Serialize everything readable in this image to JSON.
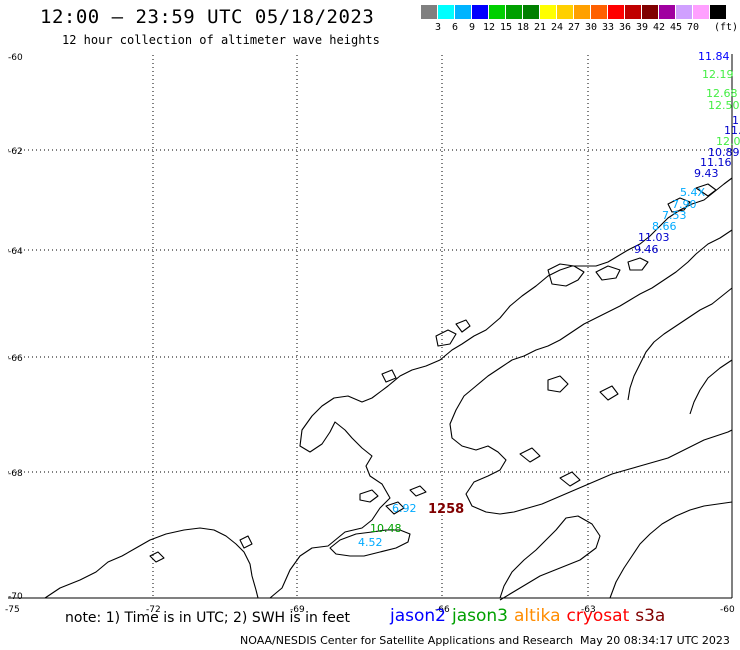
{
  "header": {
    "title": "12:00 – 23:59 UTC 05/18/2023",
    "subtitle": "12 hour collection of altimeter wave heights"
  },
  "legend": {
    "colors": [
      "#808080",
      "#00ffff",
      "#00b4ff",
      "#0000ff",
      "#00d000",
      "#00a000",
      "#008000",
      "#ffff00",
      "#ffd000",
      "#ffa000",
      "#ff6000",
      "#ff0000",
      "#c00000",
      "#800000",
      "#a000a0",
      "#d0a0ff",
      "#ffa0ff",
      "#000000"
    ],
    "labels": [
      "3",
      "6",
      "9",
      "12",
      "15",
      "18",
      "21",
      "24",
      "27",
      "30",
      "33",
      "36",
      "39",
      "42",
      "45",
      "70"
    ],
    "unit": "(ft)"
  },
  "axes": {
    "lat_labels": [
      "-60",
      "-62",
      "-64",
      "-66",
      "-68",
      "-70"
    ],
    "lon_labels": [
      "-75",
      "-72",
      "-69",
      "-66",
      "-63",
      "-60"
    ]
  },
  "wave_labels": [
    {
      "text": "11.84",
      "color": "#0000ff"
    },
    {
      "text": "12.19",
      "color": "#44ee44"
    },
    {
      "text": "12.68",
      "color": "#44ee44"
    },
    {
      "text": "12.50",
      "color": "#44ee44"
    },
    {
      "text": "1",
      "color": "#0000cc"
    },
    {
      "text": "11.",
      "color": "#0000cc"
    },
    {
      "text": "12.0",
      "color": "#44ee44"
    },
    {
      "text": "10.89",
      "color": "#0000cc"
    },
    {
      "text": "11.16",
      "color": "#0000cc"
    },
    {
      "text": "9.43",
      "color": "#0000cc"
    },
    {
      "text": "5.4X",
      "color": "#00aaff"
    },
    {
      "text": "7.90",
      "color": "#00aaff"
    },
    {
      "text": "7.53",
      "color": "#00aaff"
    },
    {
      "text": "8.66",
      "color": "#00aaff"
    },
    {
      "text": "11.03",
      "color": "#0000cc"
    },
    {
      "text": "9.46",
      "color": "#0000cc"
    },
    {
      "text": "6.92",
      "color": "#00aaff"
    },
    {
      "text": "1258",
      "color": "#800000"
    },
    {
      "text": "10.48",
      "color": "#00a000"
    },
    {
      "text": "4.52",
      "color": "#00aaff"
    }
  ],
  "footer": {
    "note": "note: 1) Time is in UTC; 2) SWH is in feet",
    "satellites": [
      {
        "name": "jason2",
        "color": "#0000ff"
      },
      {
        "name": "jason3",
        "color": "#00a000"
      },
      {
        "name": "altika",
        "color": "#ff8c00"
      },
      {
        "name": "cryosat",
        "color": "#ff0000"
      },
      {
        "name": "s3a",
        "color": "#800000"
      }
    ],
    "credit": "NOAA/NESDIS Center for Satellite Applications and Research",
    "timestamp": "May 20 08:34:17 UTC 2023"
  }
}
